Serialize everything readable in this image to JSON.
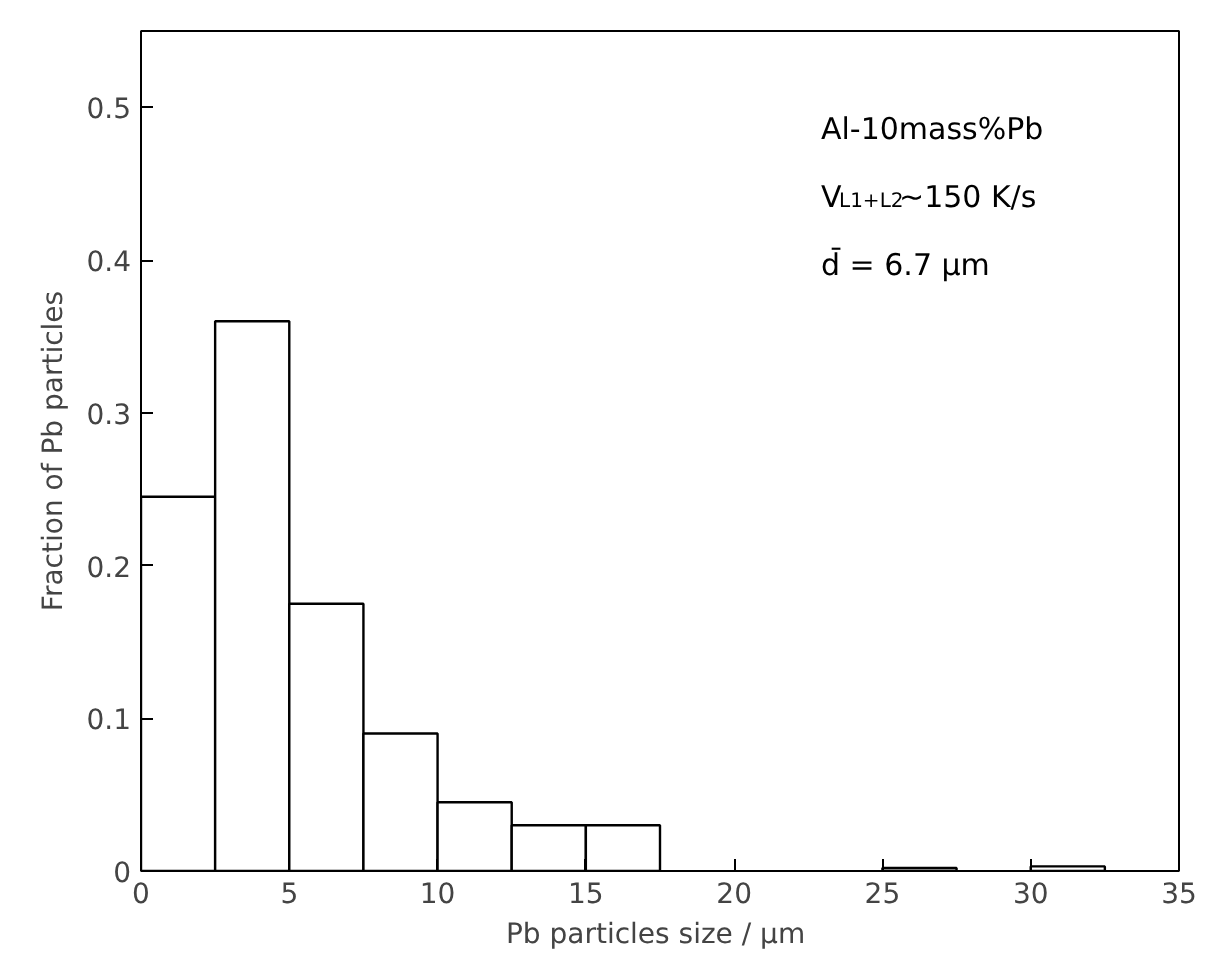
{
  "chart_data": {
    "type": "histogram",
    "xlabel": "Pb particles size  / µm",
    "ylabel": "Fraction of Pb particles",
    "bins": [
      0,
      2.5,
      5,
      7.5,
      10,
      12.5,
      15,
      17.5,
      20,
      22.5,
      25,
      27.5,
      30,
      32.5
    ],
    "values": [
      0.245,
      0.36,
      0.175,
      0.09,
      0.045,
      0.03,
      0.03,
      0,
      0,
      0,
      0.002,
      0,
      0.003
    ],
    "color": "#ffffff",
    "xlim": [
      0,
      35
    ],
    "xticks": [
      0,
      5,
      10,
      15,
      20,
      25,
      30,
      35
    ],
    "ylim": [
      0,
      0.55
    ],
    "yticks": [
      0,
      0.1,
      0.2,
      0.3,
      0.4,
      0.5
    ],
    "annotations": [
      "Al-10mass%Pb",
      "V$_{L1+L2}$~150 K/s",
      "d̄ = 6.7 µm"
    ],
    "grid": false
  }
}
